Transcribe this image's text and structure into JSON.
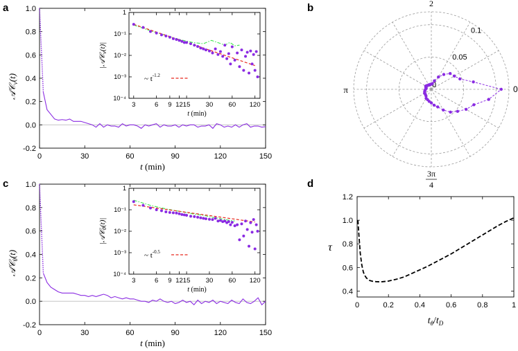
{
  "panel_labels": {
    "a": "a",
    "b": "b",
    "c": "c",
    "d": "d"
  },
  "colors": {
    "main": "#8A2BE2",
    "fit": "#E8281E",
    "green": "#3CE84C",
    "axis": "#000000",
    "grid": "#9a9a9a"
  },
  "chart_data": [
    {
      "id": "a",
      "type": "line",
      "title": "",
      "xlabel": "t (min)",
      "ylabel": "AC_v(t)",
      "xlim": [
        0,
        150
      ],
      "ylim": [
        -0.2,
        1.0
      ],
      "xticks": [
        0,
        30,
        60,
        90,
        120,
        150
      ],
      "yticks": [
        -0.2,
        0.0,
        0.2,
        0.4,
        0.6,
        0.8,
        1.0
      ],
      "yticklabels": [
        "-0.2",
        "0.0",
        "0.2",
        "0.4",
        "0.6",
        "0.8",
        "1.0"
      ],
      "series": [
        {
          "name": "AC_v(t)",
          "x": [
            0,
            2.5,
            5,
            7.5,
            10,
            12.5,
            15,
            17.5,
            20,
            22.5,
            25,
            27.5,
            30,
            32.5,
            35,
            37.5,
            40,
            42.5,
            45,
            47.5,
            50,
            52.5,
            55,
            57.5,
            60,
            62.5,
            65,
            67.5,
            70,
            72.5,
            75,
            77.5,
            80,
            82.5,
            85,
            87.5,
            90,
            92.5,
            95,
            97.5,
            100,
            102.5,
            105,
            107.5,
            110,
            112.5,
            115,
            117.5,
            120,
            122.5,
            125,
            127.5,
            130,
            132.5,
            135,
            137.5,
            140,
            142.5,
            145,
            147.5,
            150
          ],
          "values": [
            1.0,
            0.28,
            0.13,
            0.09,
            0.05,
            0.04,
            0.045,
            0.04,
            0.05,
            0.03,
            0.03,
            0.03,
            0.02,
            0.01,
            0.0,
            -0.02,
            0.01,
            -0.02,
            0.0,
            -0.01,
            -0.01,
            -0.02,
            0.01,
            -0.01,
            0.0,
            0.0,
            -0.01,
            -0.03,
            0.0,
            -0.01,
            0.0,
            0.01,
            -0.02,
            0.0,
            -0.01,
            -0.01,
            0.0,
            -0.02,
            0.0,
            -0.01,
            0.0,
            0.0,
            -0.02,
            -0.01,
            -0.01,
            0.0,
            -0.03,
            0.01,
            0.0,
            -0.02,
            -0.01,
            -0.02,
            0.0,
            -0.02,
            0.0,
            0.01,
            -0.02,
            -0.01,
            -0.01,
            -0.02,
            -0.015
          ]
        }
      ],
      "inset": {
        "type": "scatter",
        "xscale": "log",
        "yscale": "log",
        "xlabel": "t (min)",
        "ylabel": "|AC_v(t)|",
        "xlim": [
          2.6,
          140
        ],
        "ylim": [
          0.0001,
          1
        ],
        "xticks": [
          3,
          6,
          9,
          12,
          15,
          30,
          60,
          120
        ],
        "yticks": [
          0.0001,
          0.001,
          0.01,
          0.1,
          1
        ],
        "points": {
          "x": [
            3,
            4,
            5,
            6,
            7,
            8,
            9,
            10,
            11,
            12,
            13,
            14,
            15,
            17,
            19,
            21,
            23,
            25,
            27,
            30,
            33,
            36,
            39,
            42,
            45,
            48,
            51,
            54,
            57,
            60,
            65,
            70,
            75,
            80,
            85,
            90,
            95,
            100,
            105,
            110,
            115,
            120,
            125,
            130
          ],
          "y": [
            0.28,
            0.2,
            0.13,
            0.11,
            0.09,
            0.08,
            0.07,
            0.06,
            0.055,
            0.05,
            0.045,
            0.04,
            0.04,
            0.035,
            0.03,
            0.026,
            0.022,
            0.02,
            0.018,
            0.016,
            0.013,
            0.02,
            0.011,
            0.015,
            0.009,
            0.03,
            0.007,
            0.012,
            0.004,
            0.025,
            0.006,
            0.013,
            0.003,
            0.018,
            0.002,
            0.009,
            0.014,
            0.0015,
            0.016,
            0.004,
            0.011,
            0.002,
            0.015,
            0.001
          ]
        },
        "fit": {
          "label": "~ t^-1.2",
          "exponent": -1.2,
          "amplitude": 1.0,
          "xrange": [
            3,
            120
          ]
        },
        "green_curve": {
          "x": [
            3,
            5,
            8,
            12,
            18,
            25,
            32,
            40,
            48,
            56,
            65,
            75
          ],
          "y": [
            0.26,
            0.14,
            0.085,
            0.055,
            0.04,
            0.035,
            0.05,
            0.038,
            0.03,
            0.04,
            0.028,
            0.03
          ]
        },
        "legend_text": "~ t",
        "legend_exponent": "-1.2"
      }
    },
    {
      "id": "b",
      "type": "polar",
      "angle_labels": {
        "right": "0",
        "left": "π",
        "top_num": "π",
        "top_den": "2",
        "bottom_num": "3π",
        "bottom_den": "4"
      },
      "radial_ticks": [
        0,
        0.05,
        0.1
      ],
      "radial_labels": [
        "0",
        "0.05",
        "0.1"
      ],
      "rmax": 0.12,
      "series": [
        {
          "name": "distribution",
          "theta_deg": [
            0,
            10,
            20,
            30,
            40,
            50,
            60,
            70,
            80,
            90,
            100,
            110,
            120,
            130,
            140,
            150,
            160,
            170,
            180,
            190,
            200,
            210,
            220,
            230,
            240,
            250,
            260,
            270,
            280,
            290,
            300,
            310,
            320,
            330,
            340,
            350
          ],
          "r": [
            0.108,
            0.066,
            0.047,
            0.041,
            0.038,
            0.03,
            0.022,
            0.014,
            0.009,
            0.008,
            0.008,
            0.007,
            0.008,
            0.008,
            0.009,
            0.01,
            0.009,
            0.008,
            0.009,
            0.01,
            0.011,
            0.012,
            0.012,
            0.013,
            0.016,
            0.017,
            0.019,
            0.021,
            0.025,
            0.029,
            0.037,
            0.046,
            0.053,
            0.062,
            0.07,
            0.09
          ]
        }
      ]
    },
    {
      "id": "c",
      "type": "line",
      "title": "",
      "xlabel": "t (min)",
      "ylabel": "AC_θ(t)",
      "xlim": [
        0,
        150
      ],
      "ylim": [
        -0.2,
        1.0
      ],
      "xticks": [
        0,
        30,
        60,
        90,
        120,
        150
      ],
      "yticks": [
        -0.2,
        0.0,
        0.2,
        0.4,
        0.6,
        0.8,
        1.0
      ],
      "yticklabels": [
        "-0.2",
        "0.0",
        "0.2",
        "0.4",
        "0.6",
        "0.8",
        "1.0"
      ],
      "series": [
        {
          "name": "AC_θ(t)",
          "x": [
            0,
            2.5,
            5,
            7.5,
            10,
            12.5,
            15,
            17.5,
            20,
            22.5,
            25,
            27.5,
            30,
            32.5,
            35,
            37.5,
            40,
            42.5,
            45,
            47.5,
            50,
            52.5,
            55,
            57.5,
            60,
            62.5,
            65,
            67.5,
            70,
            72.5,
            75,
            77.5,
            80,
            82.5,
            85,
            87.5,
            90,
            92.5,
            95,
            97.5,
            100,
            102.5,
            105,
            107.5,
            110,
            112.5,
            115,
            117.5,
            120,
            122.5,
            125,
            127.5,
            130,
            132.5,
            135,
            137.5,
            140,
            142.5,
            145,
            147.5,
            150
          ],
          "values": [
            1.0,
            0.24,
            0.16,
            0.12,
            0.1,
            0.08,
            0.07,
            0.07,
            0.07,
            0.07,
            0.06,
            0.05,
            0.05,
            0.04,
            0.05,
            0.04,
            0.05,
            0.06,
            0.05,
            0.03,
            0.04,
            0.03,
            0.02,
            0.03,
            0.02,
            0.02,
            0.01,
            0.0,
            0.0,
            -0.01,
            0.01,
            0.0,
            0.02,
            0.0,
            -0.01,
            0.0,
            -0.02,
            -0.01,
            0.01,
            -0.01,
            0.0,
            -0.03,
            0.01,
            -0.02,
            0.0,
            -0.01,
            0.01,
            -0.02,
            0.0,
            -0.01,
            -0.02,
            0.01,
            -0.01,
            -0.02,
            0.02,
            -0.01,
            -0.02,
            0.0,
            0.03,
            -0.03,
            0.0
          ]
        }
      ],
      "inset": {
        "type": "scatter",
        "xscale": "log",
        "yscale": "log",
        "xlabel": "t (min)",
        "ylabel": "|AC_θ(t)|",
        "xlim": [
          2.6,
          140
        ],
        "ylim": [
          0.0001,
          1
        ],
        "xticks": [
          3,
          6,
          9,
          12,
          15,
          30,
          60,
          120
        ],
        "yticks": [
          0.0001,
          0.001,
          0.01,
          0.1,
          1
        ],
        "points": {
          "x": [
            3,
            4,
            5,
            6,
            7,
            8,
            9,
            10,
            11,
            12,
            13,
            14,
            15,
            17,
            19,
            21,
            23,
            25,
            27,
            30,
            33,
            36,
            39,
            42,
            45,
            48,
            51,
            54,
            57,
            60,
            65,
            70,
            75,
            80,
            85,
            90,
            95,
            100,
            105,
            110,
            115,
            120,
            125,
            130
          ],
          "y": [
            0.24,
            0.16,
            0.12,
            0.1,
            0.09,
            0.08,
            0.075,
            0.072,
            0.07,
            0.065,
            0.06,
            0.058,
            0.055,
            0.05,
            0.048,
            0.045,
            0.042,
            0.04,
            0.038,
            0.036,
            0.035,
            0.04,
            0.03,
            0.032,
            0.028,
            0.03,
            0.025,
            0.028,
            0.02,
            0.026,
            0.018,
            0.02,
            0.004,
            0.022,
            0.006,
            0.03,
            0.012,
            0.002,
            0.025,
            0.009,
            0.035,
            0.0015,
            0.02,
            0.01
          ]
        },
        "fit": {
          "label": "~ t^-0.5",
          "exponent": -0.5,
          "amplitude": 0.17,
          "xrange": [
            3,
            120
          ]
        },
        "green_curve": {
          "x": [
            3,
            5,
            8,
            12,
            18,
            25,
            32,
            40,
            48,
            56,
            65
          ],
          "y": [
            0.28,
            0.16,
            0.11,
            0.085,
            0.065,
            0.055,
            0.045,
            0.04,
            0.035,
            0.032,
            0.03
          ]
        },
        "legend_text": "~ t",
        "legend_exponent": "-0.5"
      }
    },
    {
      "id": "d",
      "type": "line",
      "xlabel": "tθ/tD",
      "ylabel": "τ",
      "xlim": [
        0,
        1
      ],
      "ylim": [
        0.35,
        1.2
      ],
      "xticks": [
        0,
        0.2,
        0.4,
        0.6,
        0.8,
        1
      ],
      "xticklabels": [
        "0",
        "0.2",
        "0.4",
        "0.6",
        "0.8",
        "1"
      ],
      "yticks": [
        0.4,
        0.6,
        0.8,
        1.0,
        1.2
      ],
      "yticklabels": [
        "0.4",
        "0.6",
        "0.8",
        "1.0",
        "1.2"
      ],
      "series": [
        {
          "name": "τ",
          "style": "dashed",
          "x": [
            0.005,
            0.01,
            0.02,
            0.03,
            0.04,
            0.05,
            0.06,
            0.08,
            0.1,
            0.12,
            0.15,
            0.2,
            0.25,
            0.3,
            0.35,
            0.4,
            0.45,
            0.5,
            0.55,
            0.6,
            0.65,
            0.7,
            0.75,
            0.8,
            0.85,
            0.9,
            0.95,
            1.0
          ],
          "values": [
            1.0,
            0.9,
            0.72,
            0.62,
            0.56,
            0.53,
            0.51,
            0.49,
            0.483,
            0.48,
            0.478,
            0.485,
            0.5,
            0.52,
            0.55,
            0.58,
            0.61,
            0.645,
            0.68,
            0.715,
            0.755,
            0.795,
            0.835,
            0.875,
            0.915,
            0.955,
            0.99,
            1.02
          ]
        }
      ]
    }
  ]
}
